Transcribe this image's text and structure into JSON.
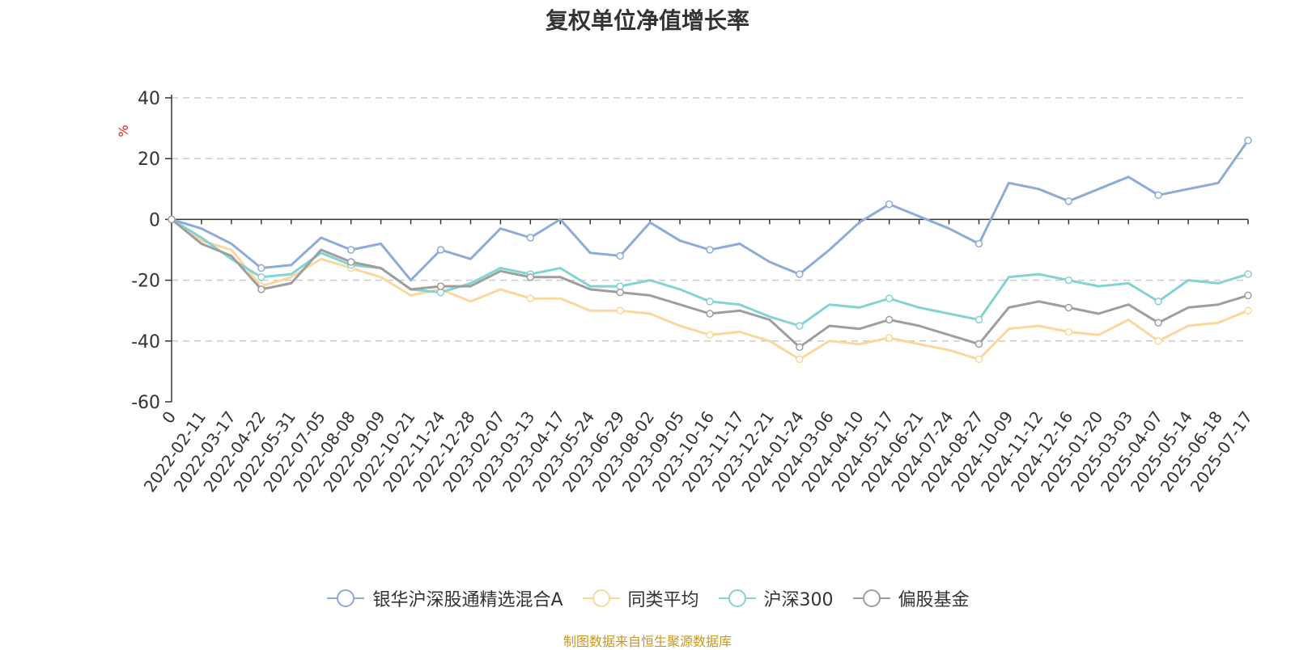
{
  "title": "复权单位净值增长率",
  "source": "制图数据来自恒生聚源数据库",
  "chart_data": {
    "type": "line",
    "title": "复权单位净值增长率",
    "ylabel": "%",
    "ylim": [
      -60,
      40
    ],
    "yticks": [
      40,
      20,
      0,
      -20,
      -40,
      -60
    ],
    "grid": true,
    "legend_position": "bottom",
    "x_ticks": [
      "0",
      "2022-02-11",
      "2022-03-17",
      "2022-04-22",
      "2022-05-31",
      "2022-07-05",
      "2022-08-08",
      "2022-09-09",
      "2022-10-21",
      "2022-11-24",
      "2022-12-28",
      "2023-02-07",
      "2023-03-13",
      "2023-04-17",
      "2023-05-24",
      "2023-06-29",
      "2023-08-02",
      "2023-09-05",
      "2023-10-16",
      "2023-11-17",
      "2023-12-21",
      "2024-01-24",
      "2024-03-06",
      "2024-04-10",
      "2024-05-17",
      "2024-06-21",
      "2024-07-24",
      "2024-08-27",
      "2024-10-09",
      "2024-11-12",
      "2024-12-16",
      "2025-01-20",
      "2025-03-03",
      "2025-04-07",
      "2025-05-14",
      "2025-06-18",
      "2025-07-17"
    ],
    "series": [
      {
        "name": "银华沪深股通精选混合A",
        "color": "#8eaad8",
        "values": [
          0,
          -3,
          -8,
          -16,
          -15,
          -6,
          -10,
          -8,
          -20,
          -10,
          -13,
          -3,
          -6,
          0,
          -11,
          -12,
          -1,
          -7,
          -10,
          -8,
          -14,
          -18,
          -10,
          -1,
          5,
          1,
          -3,
          -8,
          12,
          10,
          6,
          10,
          14,
          8,
          10,
          12,
          26
        ]
      },
      {
        "name": "同类平均",
        "color": "#fcd79b",
        "values": [
          0,
          -7,
          -10,
          -22,
          -19,
          -13,
          -16,
          -19,
          -25,
          -23,
          -27,
          -23,
          -26,
          -26,
          -30,
          -30,
          -31,
          -35,
          -38,
          -37,
          -40,
          -46,
          -40,
          -41,
          -39,
          -41,
          -43,
          -46,
          -36,
          -35,
          -37,
          -38,
          -33,
          -40,
          -35,
          -34,
          -30
        ]
      },
      {
        "name": "沪深300",
        "color": "#83d2d4",
        "values": [
          0,
          -6,
          -13,
          -19,
          -18,
          -11,
          -15,
          -16,
          -23,
          -24,
          -21,
          -16,
          -18,
          -16,
          -22,
          -22,
          -20,
          -23,
          -27,
          -28,
          -32,
          -35,
          -28,
          -29,
          -26,
          -29,
          -31,
          -33,
          -19,
          -18,
          -20,
          -22,
          -21,
          -27,
          -20,
          -21,
          -18
        ]
      },
      {
        "name": "偏股基金",
        "color": "#9e9e9e",
        "values": [
          0,
          -8,
          -12,
          -23,
          -21,
          -10,
          -14,
          -16,
          -23,
          -22,
          -22,
          -17,
          -19,
          -19,
          -23,
          -24,
          -25,
          -28,
          -31,
          -30,
          -33,
          -42,
          -35,
          -36,
          -33,
          -35,
          -38,
          -41,
          -29,
          -27,
          -29,
          -31,
          -28,
          -34,
          -29,
          -28,
          -25
        ]
      }
    ]
  }
}
